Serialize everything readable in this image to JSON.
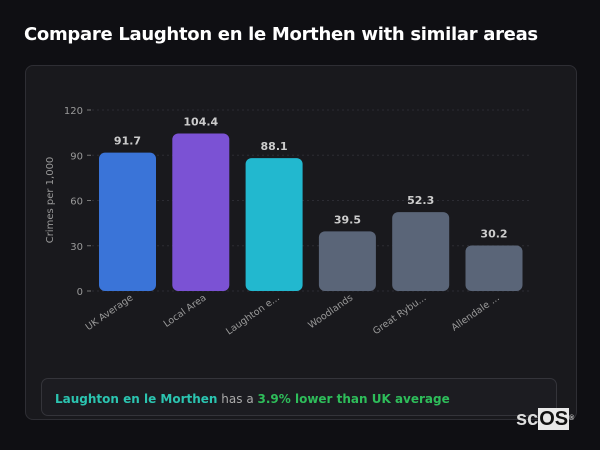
{
  "page": {
    "title": "Compare Laughton en le Morthen with similar areas"
  },
  "chart_data": {
    "type": "bar",
    "ylabel": "Crimes per 1,000",
    "ylim": [
      0,
      120
    ],
    "yticks": [
      0,
      30,
      60,
      90,
      120
    ],
    "grid": true,
    "categories": [
      "UK Average",
      "Local Area",
      "Laughton e...",
      "Woodlands",
      "Great Rybu...",
      "Allendale ..."
    ],
    "values": [
      91.7,
      104.4,
      88.1,
      39.5,
      52.3,
      30.2
    ],
    "value_labels": [
      "91.7",
      "104.4",
      "88.1",
      "39.5",
      "52.3",
      "30.2"
    ],
    "colors": [
      "#3a74d8",
      "#7b52d4",
      "#22b8cf",
      "#5a6578",
      "#5a6578",
      "#5a6578"
    ]
  },
  "summary": {
    "area": "Laughton en le Morthen",
    "middle": " has a ",
    "comparison": "3.9% lower than UK average"
  },
  "logo": {
    "text_a": "sc",
    "text_b": "OS",
    "mark": "®"
  }
}
